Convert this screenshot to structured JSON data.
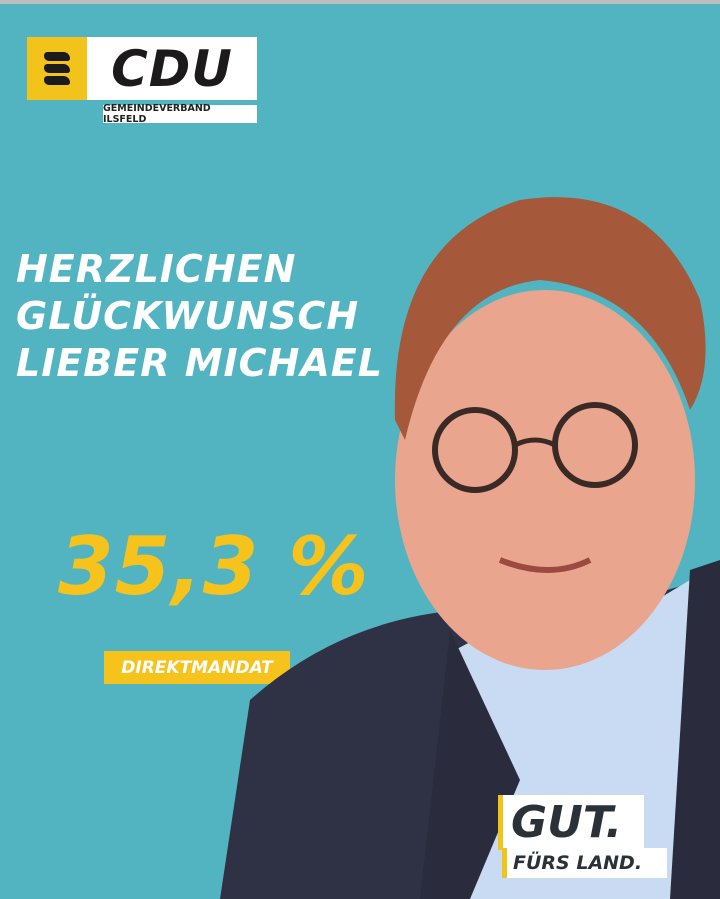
{
  "logo": {
    "party": "CDU",
    "subtitle": "GEMEINDEVERBAND ILSFELD"
  },
  "headline": {
    "line1": "HERZLICHEN",
    "line2": "GLÜCKWUNSCH",
    "line3": "LIEBER MICHAEL"
  },
  "result": {
    "percent": "35,3 %",
    "label": "DIREKTMANDAT"
  },
  "slogan": {
    "line1": "GUT.",
    "line2": "FÜRS LAND."
  },
  "colors": {
    "background": "#52b4c0",
    "accent": "#f6c21c",
    "text": "#ffffff"
  }
}
